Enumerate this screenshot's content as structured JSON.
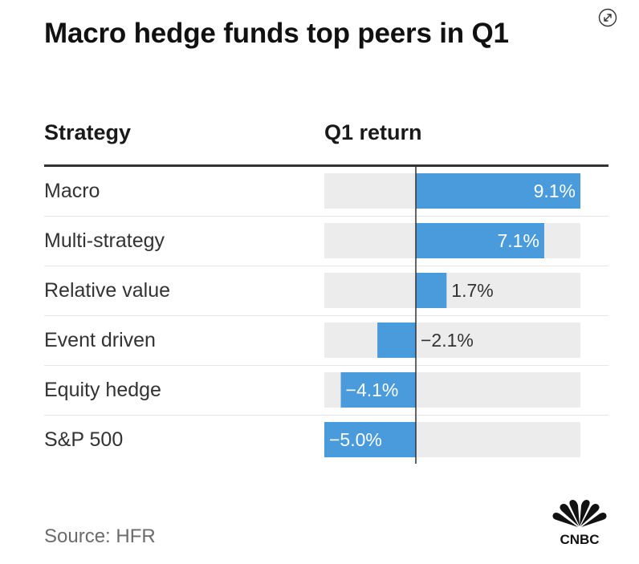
{
  "title": "Macro hedge funds top peers in Q1",
  "header": {
    "strategy": "Strategy",
    "q1_return": "Q1 return"
  },
  "source": "Source: HFR",
  "logo_text": "CNBC",
  "colors": {
    "bar": "#4a9bdc",
    "track": "#ececec",
    "axis": "#333333"
  },
  "chart_data": {
    "type": "bar",
    "orientation": "horizontal",
    "categories": [
      "Macro",
      "Multi-strategy",
      "Relative value",
      "Event driven",
      "Equity hedge",
      "S&P 500"
    ],
    "values": [
      9.1,
      7.1,
      1.7,
      -2.1,
      -4.1,
      -5.0
    ],
    "value_labels": [
      "9.1%",
      "7.1%",
      "1.7%",
      "−2.1%",
      "−4.1%",
      "−5.0%"
    ],
    "unit": "%",
    "xlim": [
      -5.0,
      9.1
    ]
  }
}
